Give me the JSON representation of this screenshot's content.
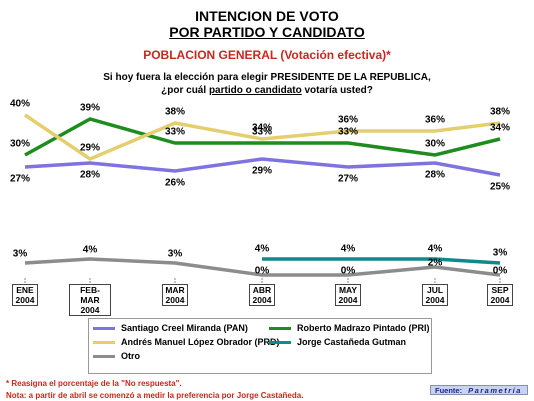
{
  "header": {
    "title_line1": "INTENCION DE VOTO",
    "title_line2": "POR PARTIDO Y CANDIDATO",
    "subtitle": "POBLACION GENERAL (Votación efectiva)*",
    "question_line1": "Si hoy fuera la elección para elegir PRESIDENTE DE LA REPUBLICA,",
    "question_line2": [
      "¿por cuál",
      "partido o candidato",
      "votaría usted?"
    ]
  },
  "chart_data": {
    "type": "line",
    "categories": [
      "ENE 2004",
      "FEB- MAR 2004",
      "MAR 2004",
      "ABR 2004",
      "MAY 2004",
      "JUL 2004",
      "SEP 2004"
    ],
    "series": [
      {
        "name": "Santiago Creel Miranda (PAN)",
        "color": "#7f73e0",
        "values": [
          27,
          28,
          26,
          29,
          27,
          28,
          25
        ],
        "value_labels": [
          "27%",
          "28%",
          "26%",
          "29%",
          "27%",
          "28%",
          "25%"
        ]
      },
      {
        "name": "Roberto Madrazo Pintado (PRI)",
        "color": "#1e8c1e",
        "values": [
          30,
          39,
          33,
          33,
          33,
          30,
          34
        ],
        "value_labels": [
          "30%",
          "39%",
          "33%",
          "33%",
          "33%",
          "30%",
          "34%"
        ]
      },
      {
        "name": "Andrés Manuel López Obrador (PRD)",
        "color": "#e3cf6e",
        "values": [
          40,
          29,
          38,
          34,
          36,
          36,
          38
        ],
        "value_labels": [
          "40%",
          "29%",
          "38%",
          "34%",
          "36%",
          "36%",
          "38%"
        ]
      },
      {
        "name": "Jorge Castañeda Gutman",
        "color": "#0f8a8a",
        "values": [
          null,
          null,
          null,
          4,
          4,
          4,
          3
        ],
        "value_labels": [
          null,
          null,
          null,
          "4%",
          "4%",
          "4%",
          "3%"
        ]
      },
      {
        "name": "Otro",
        "color": "#8c8c8c",
        "values": [
          3,
          4,
          3,
          0,
          0,
          2,
          0
        ],
        "value_labels": [
          "3%",
          "4%",
          "3%",
          "0%",
          "0%",
          "2%",
          "0%"
        ]
      }
    ]
  },
  "footer": {
    "note1": "* Reasigna el porcentaje de la \"No respuesta\".",
    "note2": "Nota: a partir de abril se comenzó a medir la preferencia por Jorge Castañeda.",
    "source_label": "Fuente:",
    "source": "Parametría"
  }
}
